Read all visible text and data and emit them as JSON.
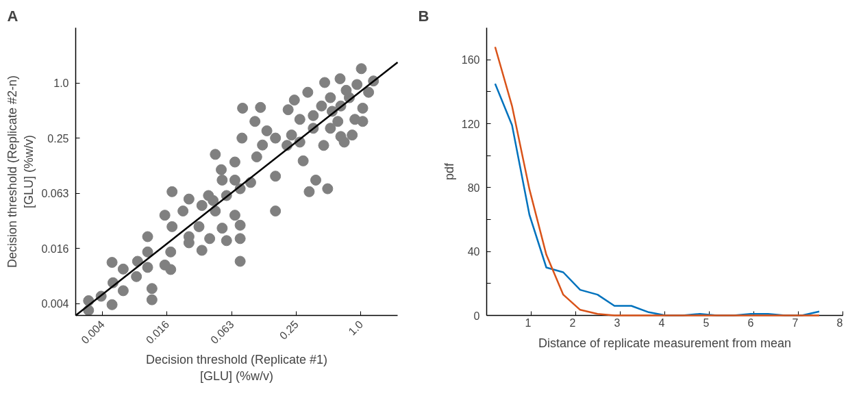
{
  "chart_data": [
    {
      "type": "scatter",
      "title": "A",
      "xlabel": "Decision threshold (Replicate #1)\n[GLU] (%w/v)",
      "ylabel": "Decision threshold (Replicate #2-n)\n[GLU] (%w/v)",
      "log": "xy",
      "grid": false,
      "xlim": [
        0.0022,
        2.2
      ],
      "ylim": [
        0.0029,
        4.0
      ],
      "xticks": [
        {
          "value": 0.0039,
          "label": "0.004"
        },
        {
          "value": 0.0156,
          "label": "0.016"
        },
        {
          "value": 0.0625,
          "label": "0.063"
        },
        {
          "value": 0.25,
          "label": "0.25"
        },
        {
          "value": 1,
          "label": "1.0"
        }
      ],
      "yticks": [
        {
          "value": 0.0039,
          "label": "0.004"
        },
        {
          "value": 0.0156,
          "label": "0.016"
        },
        {
          "value": 0.0625,
          "label": "0.063"
        },
        {
          "value": 0.25,
          "label": "0.25"
        },
        {
          "value": 1,
          "label": "1.0"
        }
      ],
      "series": [
        {
          "color": "#808080",
          "marker": "circle",
          "x": [
            0.0029,
            0.0029,
            0.0038,
            0.0048,
            0.0048,
            0.0061,
            0.0061,
            0.0049,
            0.0081,
            0.0083,
            0.0103,
            0.0103,
            0.0113,
            0.0113,
            0.0103,
            0.0149,
            0.0149,
            0.0169,
            0.0169,
            0.0174,
            0.0174,
            0.022,
            0.025,
            0.025,
            0.025,
            0.033,
            0.033,
            0.031,
            0.039,
            0.038,
            0.044,
            0.044,
            0.051,
            0.051,
            0.056,
            0.056,
            0.067,
            0.067,
            0.075,
            0.075,
            0.075,
            0.067,
            0.075,
            0.078,
            0.079,
            0.094,
            0.107,
            0.103,
            0.116,
            0.121,
            0.133,
            0.16,
            0.16,
            0.16,
            0.205,
            0.21,
            0.24,
            0.27,
            0.29,
            0.33,
            0.38,
            0.49,
            0.32,
            0.36,
            0.45,
            0.46,
            0.52,
            0.61,
            0.64,
            0.65,
            0.7,
            0.83,
            0.78,
            0.92,
            1.01,
            1.04,
            1.31,
            1.04,
            0.88,
            0.36,
            0.27,
            0.54,
            0.73,
            0.52,
            1.18,
            0.226,
            0.43,
            0.65,
            0.05,
            0.042
          ],
          "values": [
            0.0033,
            0.0042,
            0.0047,
            0.0038,
            0.011,
            0.0093,
            0.0054,
            0.0066,
            0.0077,
            0.0113,
            0.021,
            0.0143,
            0.0057,
            0.0043,
            0.0097,
            0.036,
            0.0103,
            0.0092,
            0.0143,
            0.065,
            0.027,
            0.04,
            0.054,
            0.021,
            0.018,
            0.046,
            0.0149,
            0.027,
            0.02,
            0.059,
            0.166,
            0.04,
            0.026,
            0.087,
            0.019,
            0.059,
            0.137,
            0.036,
            0.028,
            0.02,
            0.0113,
            0.087,
            0.07,
            0.25,
            0.53,
            0.082,
            0.156,
            0.38,
            0.54,
            0.21,
            0.3,
            0.25,
            0.096,
            0.04,
            0.208,
            0.51,
            0.65,
            0.226,
            0.141,
            0.065,
            0.087,
            0.07,
            0.79,
            0.44,
            0.208,
            1.01,
            0.69,
            0.38,
            1.11,
            0.26,
            0.226,
            0.27,
            0.69,
            0.96,
            1.43,
            0.53,
            1.05,
            0.38,
            0.4,
            0.32,
            0.4,
            0.49,
            0.83,
            0.32,
            0.79,
            0.27,
            0.56,
            0.56,
            0.113,
            0.052
          ]
        },
        {
          "type": "line",
          "color": "#000000",
          "x": [
            0.0022,
            2.2
          ],
          "values": [
            0.0029,
            1.68
          ]
        }
      ]
    },
    {
      "type": "line",
      "title": "B",
      "xlabel": "Distance of replicate measurement from mean",
      "ylabel": "pdf",
      "grid": false,
      "marker": "none",
      "line_style": "solid",
      "xlim": [
        0,
        8
      ],
      "ylim": [
        0,
        180
      ],
      "xticks": [
        1,
        2,
        3,
        4,
        5,
        6,
        7,
        8
      ],
      "yticks": [
        0,
        {
          "value": 20,
          "label": null
        },
        40,
        {
          "value": 60,
          "label": null
        },
        80,
        {
          "value": 100,
          "label": null
        },
        120,
        {
          "value": 140,
          "label": null
        },
        160
      ],
      "x": [
        0.19,
        0.57,
        0.96,
        1.34,
        1.72,
        2.1,
        2.49,
        2.87,
        3.25,
        3.64,
        4.02,
        4.4,
        4.79,
        5.17,
        5.55,
        5.93,
        6.32,
        6.7,
        7.08,
        7.47
      ],
      "series": [
        {
          "color": "#0072bd",
          "values": [
            145,
            119,
            63,
            30,
            27,
            16,
            13,
            6,
            6,
            2,
            0,
            0,
            1,
            0,
            0,
            1,
            1,
            0,
            0,
            2.5
          ]
        },
        {
          "color": "#d95319",
          "values": [
            168,
            131,
            79,
            38,
            13,
            3.5,
            1,
            0,
            0,
            0,
            0,
            0,
            0,
            0,
            0,
            0,
            0,
            0,
            0,
            0
          ]
        }
      ]
    }
  ]
}
